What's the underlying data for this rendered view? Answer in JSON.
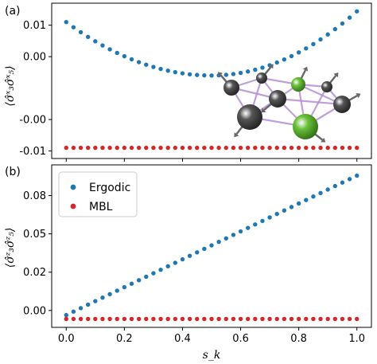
{
  "chart_data": [
    {
      "type": "scatter",
      "panel_label": "(a)",
      "ylabel": "⟨σ̂ˣ₃σ̂ˣ₅⟩",
      "xlim": [
        -0.05,
        1.05
      ],
      "ylim": [
        -0.0112,
        0.0135
      ],
      "yticks": [
        0.01,
        0.005,
        -0.005,
        -0.01
      ],
      "ytick_labels": [
        "0.01",
        "0.00",
        "-0.00",
        "-0.01"
      ],
      "series": [
        {
          "key": "ergodic",
          "color": "#1f77b4",
          "shape": "parabola",
          "params": {
            "center": 0.5,
            "min": 0.002,
            "max": 0.0122,
            "start": 0.0105
          }
        },
        {
          "key": "mbl",
          "color": "#d62728",
          "shape": "constant",
          "params": {
            "value": -0.0095
          }
        }
      ],
      "n_points": 41
    },
    {
      "type": "scatter",
      "panel_label": "(b)",
      "xlabel": "s_k",
      "ylabel": "⟨σ̂ᶻ₃σ̂ᶻ₅⟩",
      "xlim": [
        -0.05,
        1.05
      ],
      "ylim": [
        -0.011,
        0.095
      ],
      "xticks": [
        0.0,
        0.2,
        0.4,
        0.6,
        0.8,
        1.0
      ],
      "xtick_labels": [
        "0.0",
        "0.2",
        "0.4",
        "0.6",
        "0.8",
        "1.0"
      ],
      "yticks": [
        0.0,
        0.025,
        0.05,
        0.075
      ],
      "ytick_labels": [
        "0.00",
        "0.02",
        "0.05",
        "0.08"
      ],
      "legend": {
        "position": "upper-left",
        "entries": [
          {
            "label": "Ergodic",
            "color": "#1f77b4"
          },
          {
            "label": "MBL",
            "color": "#d62728"
          }
        ]
      },
      "series": [
        {
          "key": "ergodic",
          "color": "#1f77b4",
          "shape": "linear",
          "params": {
            "start": -0.003,
            "end": 0.088
          }
        },
        {
          "key": "mbl",
          "color": "#d62728",
          "shape": "constant",
          "params": {
            "value": -0.0055
          }
        }
      ],
      "n_points": 41
    }
  ],
  "inset": {
    "node_colors": {
      "gray": "#555555",
      "green": "#6bc23a"
    },
    "bond_color": "#b58fd6"
  }
}
